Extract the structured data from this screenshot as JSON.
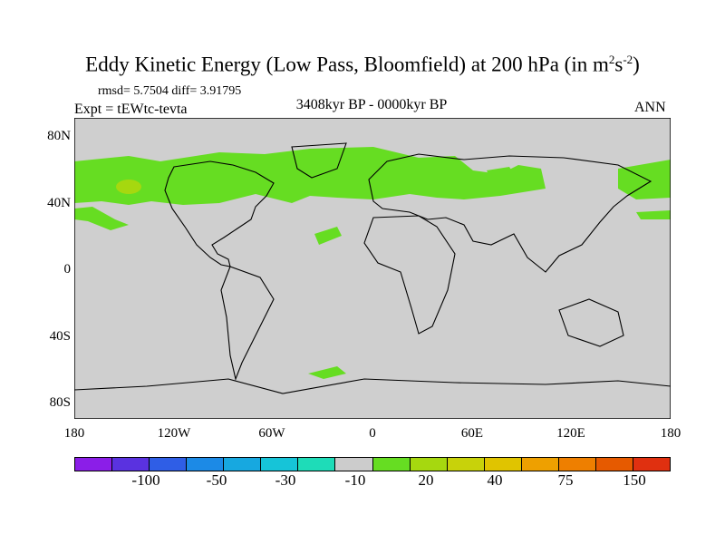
{
  "title": {
    "prefix": "Eddy Kinetic Energy (Low Pass, Bloomfield) at 200 hPa (in m",
    "sup1": "2",
    "mid": "s",
    "sup2": "-2",
    "suffix": ")"
  },
  "stats": "rmsd= 5.7504 diff= 3.91795",
  "experiment": "Expt = tEWtc-tevta",
  "period": "3408kyr BP - 0000kyr BP",
  "season": "ANN",
  "lat_labels": [
    "80N",
    "40N",
    "0",
    "40S",
    "80S"
  ],
  "lon_labels": [
    "180",
    "120W",
    "60W",
    "0",
    "60E",
    "120E",
    "180"
  ],
  "colorbar": {
    "colors": [
      "#8b1ee8",
      "#5a32e0",
      "#2f5ee6",
      "#1c8ae6",
      "#17a8e0",
      "#16c4d8",
      "#1edcb8",
      "#cccccc",
      "#66dd22",
      "#a6d80f",
      "#c8d20a",
      "#e0c400",
      "#eea000",
      "#ee7f00",
      "#e65a00",
      "#e03010"
    ],
    "labels": [
      "-100",
      "-50",
      "-30",
      "-10",
      "20",
      "40",
      "75",
      "150"
    ]
  },
  "colors": {
    "ocean_background": "#cfcfcf",
    "positive_anomaly": "#66dd22",
    "strong_anomaly": "#a6d80f"
  }
}
